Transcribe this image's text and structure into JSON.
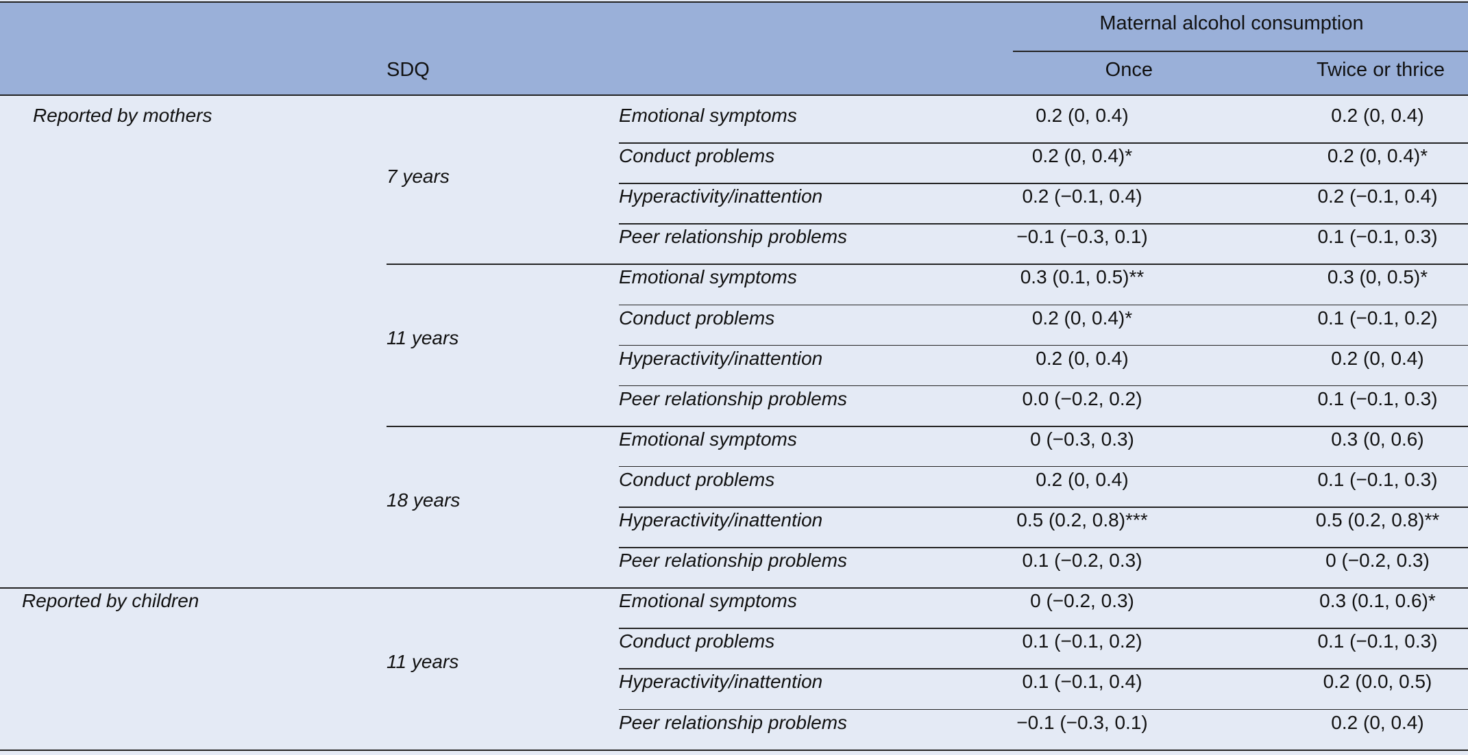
{
  "header": {
    "group_title": "Maternal alcohol consumption",
    "sdq_label": "SDQ",
    "col_once": "Once",
    "col_twice": "Twice or thrice"
  },
  "groups": [
    {
      "reporter": "Reported by mothers",
      "ages": [
        {
          "age": "7 years",
          "rows": [
            {
              "measure": "Emotional symptoms",
              "once": "0.2 (0, 0.4)",
              "twice": "0.2 (0, 0.4)"
            },
            {
              "measure": "Conduct problems",
              "once": "0.2 (0, 0.4)*",
              "twice": "0.2 (0, 0.4)*"
            },
            {
              "measure": "Hyperactivity/inattention",
              "once": "0.2 (−0.1, 0.4)",
              "twice": "0.2 (−0.1, 0.4)"
            },
            {
              "measure": "Peer relationship problems",
              "once": "−0.1 (−0.3, 0.1)",
              "twice": "0.1 (−0.1, 0.3)"
            }
          ]
        },
        {
          "age": "11 years",
          "rows": [
            {
              "measure": "Emotional symptoms",
              "once": "0.3 (0.1, 0.5)**",
              "twice": "0.3 (0, 0.5)*"
            },
            {
              "measure": "Conduct problems",
              "once": "0.2 (0, 0.4)*",
              "twice": "0.1 (−0.1, 0.2)"
            },
            {
              "measure": "Hyperactivity/inattention",
              "once": "0.2 (0, 0.4)",
              "twice": "0.2 (0, 0.4)"
            },
            {
              "measure": "Peer relationship problems",
              "once": "0.0 (−0.2, 0.2)",
              "twice": "0.1 (−0.1, 0.3)"
            }
          ]
        },
        {
          "age": "18 years",
          "rows": [
            {
              "measure": "Emotional symptoms",
              "once": "0 (−0.3, 0.3)",
              "twice": "0.3 (0, 0.6)"
            },
            {
              "measure": "Conduct problems",
              "once": "0.2 (0, 0.4)",
              "twice": "0.1 (−0.1, 0.3)"
            },
            {
              "measure": "Hyperactivity/inattention",
              "once": "0.5 (0.2, 0.8)***",
              "twice": "0.5 (0.2, 0.8)**"
            },
            {
              "measure": "Peer relationship problems",
              "once": "0.1 (−0.2, 0.3)",
              "twice": "0 (−0.2, 0.3)"
            }
          ]
        }
      ]
    },
    {
      "reporter": "Reported by children",
      "ages": [
        {
          "age": "11 years",
          "rows": [
            {
              "measure": "Emotional symptoms",
              "once": "0 (−0.2, 0.3)",
              "twice": "0.3 (0.1, 0.6)*"
            },
            {
              "measure": "Conduct problems",
              "once": "0.1 (−0.1, 0.2)",
              "twice": "0.1 (−0.1, 0.3)"
            },
            {
              "measure": "Hyperactivity/inattention",
              "once": "0.1 (−0.1, 0.4)",
              "twice": "0.2 (0.0, 0.5)"
            },
            {
              "measure": "Peer relationship problems",
              "once": "−0.1 (−0.3, 0.1)",
              "twice": "0.2 (0, 0.4)"
            }
          ]
        }
      ]
    }
  ]
}
